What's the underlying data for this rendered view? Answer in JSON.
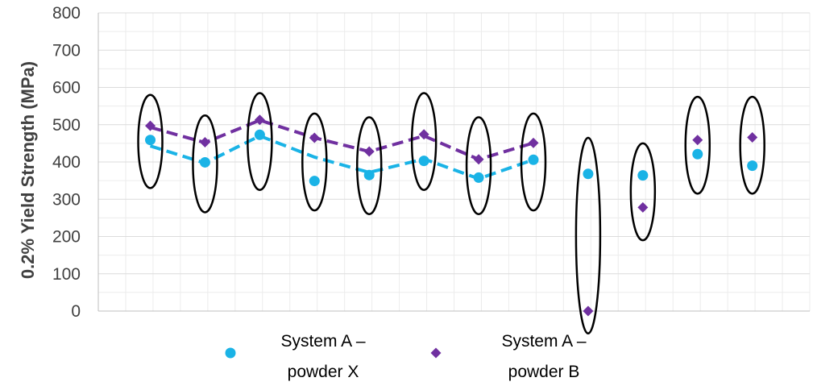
{
  "chart_data": {
    "type": "scatter",
    "title": "",
    "xlabel": "",
    "ylabel": "0.2% Yield Strength (MPa)",
    "ylim": [
      0,
      800
    ],
    "yticks": [
      "0",
      "100",
      "200",
      "300",
      "400",
      "500",
      "600",
      "700",
      "800"
    ],
    "grid": true,
    "legend_position": "bottom",
    "x": [
      1,
      2,
      3,
      4,
      5,
      6,
      7,
      8,
      9,
      10,
      11,
      12
    ],
    "series": [
      {
        "name": "System A – powder X",
        "legend_lines": [
          "System A –",
          "powder X"
        ],
        "color": "#1ab3e6",
        "marker": "circle",
        "values": [
          459,
          399,
          473,
          349,
          365,
          403,
          358,
          406,
          368,
          364,
          421,
          390
        ],
        "trendline": {
          "x": [
            1,
            2,
            3,
            4,
            5,
            6,
            7,
            8
          ],
          "values": [
            443,
            397,
            470,
            413,
            372,
            408,
            355,
            406
          ],
          "style": "dashed"
        }
      },
      {
        "name": "System A – powder B",
        "legend_lines": [
          "System A –",
          "powder B"
        ],
        "color": "#7030a0",
        "marker": "diamond",
        "values": [
          497,
          453,
          513,
          465,
          428,
          474,
          407,
          451,
          0,
          278,
          459,
          466
        ],
        "trendline": {
          "x": [
            1,
            2,
            3,
            4,
            5,
            6,
            7,
            8
          ],
          "values": [
            493,
            452,
            512,
            465,
            428,
            470,
            407,
            451
          ],
          "style": "dashed"
        }
      }
    ],
    "annotations": [
      {
        "type": "ellipse",
        "x": 1,
        "y_range": [
          330,
          580
        ]
      },
      {
        "type": "ellipse",
        "x": 2,
        "y_range": [
          265,
          525
        ]
      },
      {
        "type": "ellipse",
        "x": 3,
        "y_range": [
          325,
          585
        ]
      },
      {
        "type": "ellipse",
        "x": 4,
        "y_range": [
          270,
          530
        ]
      },
      {
        "type": "ellipse",
        "x": 5,
        "y_range": [
          260,
          520
        ]
      },
      {
        "type": "ellipse",
        "x": 6,
        "y_range": [
          325,
          585
        ]
      },
      {
        "type": "ellipse",
        "x": 7,
        "y_range": [
          260,
          520
        ]
      },
      {
        "type": "ellipse",
        "x": 8,
        "y_range": [
          270,
          530
        ]
      },
      {
        "type": "ellipse",
        "x": 9,
        "y_range": [
          -60,
          465
        ]
      },
      {
        "type": "ellipse",
        "x": 10,
        "y_range": [
          190,
          450
        ]
      },
      {
        "type": "ellipse",
        "x": 11,
        "y_range": [
          315,
          575
        ]
      },
      {
        "type": "ellipse",
        "x": 12,
        "y_range": [
          315,
          575
        ]
      }
    ]
  }
}
